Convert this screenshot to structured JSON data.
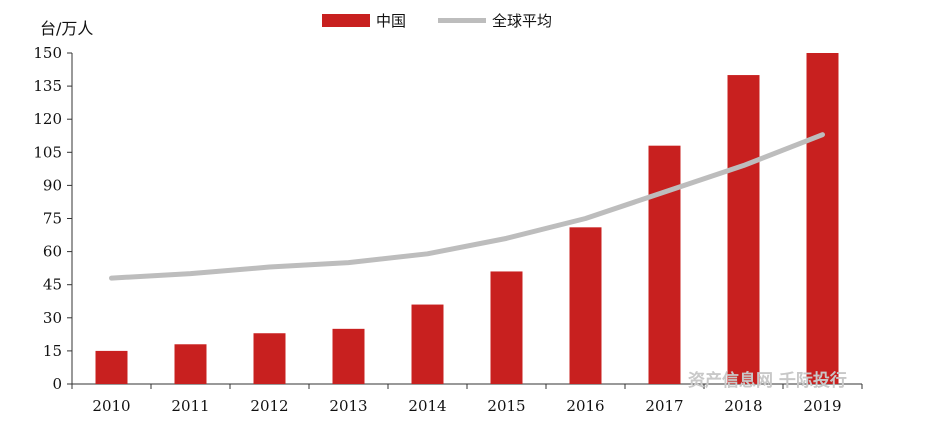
{
  "chart_data": {
    "type": "bar",
    "ylabel": "台/万人",
    "ylim": [
      0,
      150
    ],
    "yticks": [
      0,
      15,
      30,
      45,
      60,
      75,
      90,
      105,
      120,
      135,
      150
    ],
    "categories": [
      "2010",
      "2011",
      "2012",
      "2013",
      "2014",
      "2015",
      "2016",
      "2017",
      "2018",
      "2019"
    ],
    "series": [
      {
        "name": "中国",
        "type": "bar",
        "color": "#c8201f",
        "values": [
          15,
          18,
          23,
          25,
          36,
          51,
          71,
          108,
          140,
          150
        ]
      },
      {
        "name": "全球平均",
        "type": "line",
        "color": "#bdbdbd",
        "values": [
          48,
          50,
          53,
          55,
          59,
          66,
          75,
          87,
          99,
          113
        ]
      }
    ],
    "legend_position": "top-center",
    "grid": false
  },
  "watermark": "资产信息网 千际投行"
}
